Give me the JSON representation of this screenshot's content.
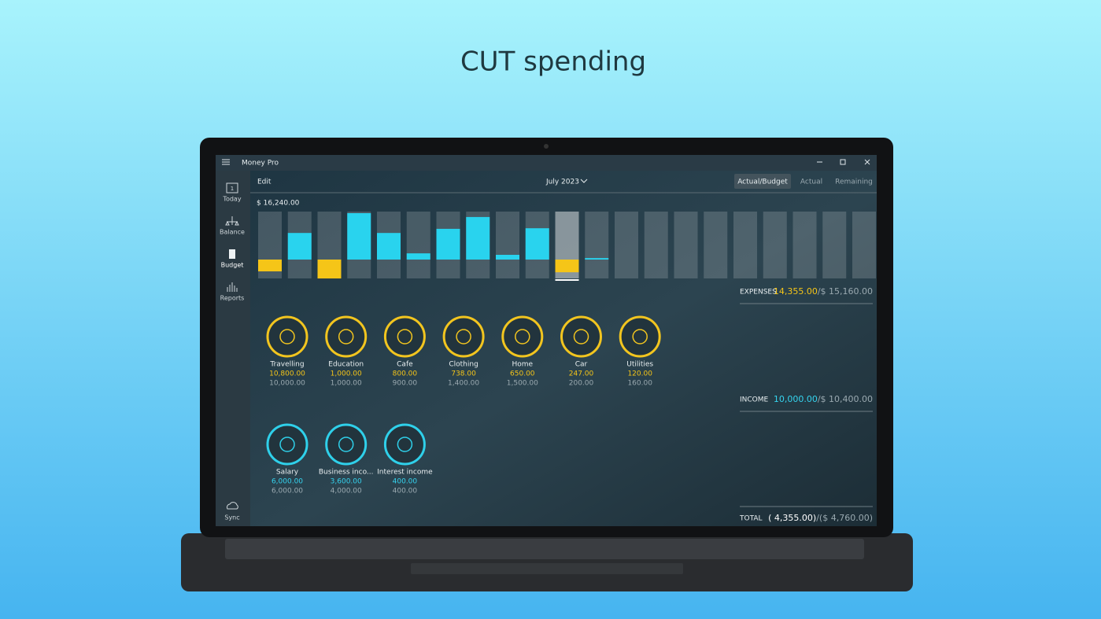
{
  "headline": "CUT spending",
  "window": {
    "title": "Money Pro"
  },
  "sidebar": [
    {
      "label": "Today",
      "icon_text": "1"
    },
    {
      "label": "Balance"
    },
    {
      "label": "Budget"
    },
    {
      "label": "Reports"
    },
    {
      "label": "Sync"
    }
  ],
  "toolbar": {
    "edit": "Edit",
    "period": "July 2023",
    "tabs": [
      "Actual/Budget",
      "Actual",
      "Remaining"
    ]
  },
  "chart": {
    "top": {
      "value": 16240,
      "label": "$ 16,240.00"
    },
    "income_color": "#29d3ee",
    "expense_color": "#f5c518",
    "selected_column": 10,
    "income": [
      null,
      9000,
      null,
      15700,
      9000,
      2100,
      10400,
      14400,
      1600,
      10600,
      null,
      500,
      null,
      null,
      null,
      null,
      null,
      null,
      null,
      null,
      null
    ],
    "expenses": [
      4000,
      null,
      6400,
      null,
      null,
      null,
      null,
      null,
      null,
      null,
      4300,
      null,
      null,
      null,
      null,
      null,
      null,
      null,
      null,
      null,
      null
    ]
  },
  "expenses": {
    "label": "EXPENSES",
    "actual": "14,355.00",
    "budget": "/$ 15,160.00",
    "ring": "#f2c51f",
    "value_color": "#f5c518",
    "categories": [
      {
        "name": "Travelling",
        "actual": "10,800.00",
        "budget": "10,000.00"
      },
      {
        "name": "Education",
        "actual": "1,000.00",
        "budget": "1,000.00"
      },
      {
        "name": "Cafe",
        "actual": "800.00",
        "budget": "900.00"
      },
      {
        "name": "Clothing",
        "actual": "738.00",
        "budget": "1,400.00"
      },
      {
        "name": "Home",
        "actual": "650.00",
        "budget": "1,500.00"
      },
      {
        "name": "Car",
        "actual": "247.00",
        "budget": "200.00"
      },
      {
        "name": "Utilities",
        "actual": "120.00",
        "budget": "160.00"
      }
    ]
  },
  "income": {
    "label": "INCOME",
    "actual": "10,000.00",
    "budget": "/$ 10,400.00",
    "ring": "#2fd0ea",
    "value_color": "#35d3ee",
    "categories": [
      {
        "name": "Salary",
        "actual": "6,000.00",
        "budget": "6,000.00"
      },
      {
        "name": "Business inco...",
        "actual": "3,600.00",
        "budget": "4,000.00"
      },
      {
        "name": "Interest income",
        "actual": "400.00",
        "budget": "400.00"
      }
    ]
  },
  "total": {
    "label": "TOTAL",
    "actual": "( 4,355.00)",
    "budget": "/($ 4,760.00)"
  }
}
